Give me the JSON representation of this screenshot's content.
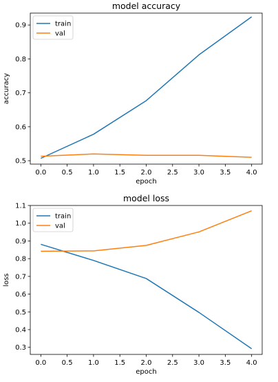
{
  "chart_data": [
    {
      "type": "line",
      "title": "model accuracy",
      "xlabel": "epoch",
      "ylabel": "accuracy",
      "x": [
        0,
        1,
        2,
        3,
        4
      ],
      "xlim": [
        -0.2,
        4.2
      ],
      "ylim": [
        0.49,
        0.935
      ],
      "xticks": [
        "0.0",
        "0.5",
        "1.0",
        "1.5",
        "2.0",
        "2.5",
        "3.0",
        "3.5",
        "4.0"
      ],
      "yticks": [
        "0.5",
        "0.6",
        "0.7",
        "0.8",
        "0.9"
      ],
      "legend": "top-left",
      "grid": false,
      "series": [
        {
          "name": "train",
          "color": "#1f77b4",
          "values": [
            0.507,
            0.578,
            0.677,
            0.812,
            0.924
          ]
        },
        {
          "name": "val",
          "color": "#ff7f0e",
          "values": [
            0.513,
            0.52,
            0.516,
            0.516,
            0.51
          ]
        }
      ]
    },
    {
      "type": "line",
      "title": "model loss",
      "xlabel": "epoch",
      "ylabel": "loss",
      "x": [
        0,
        1,
        2,
        3,
        4
      ],
      "xlim": [
        -0.2,
        4.2
      ],
      "ylim": [
        0.26,
        1.1
      ],
      "xticks": [
        "0.0",
        "0.5",
        "1.0",
        "1.5",
        "2.0",
        "2.5",
        "3.0",
        "3.5",
        "4.0"
      ],
      "yticks": [
        "0.3",
        "0.4",
        "0.5",
        "0.6",
        "0.7",
        "0.8",
        "0.9",
        "1.0",
        "1.1"
      ],
      "legend": "top-left",
      "grid": false,
      "series": [
        {
          "name": "train",
          "color": "#1f77b4",
          "values": [
            0.881,
            0.79,
            0.688,
            0.497,
            0.292
          ]
        },
        {
          "name": "val",
          "color": "#ff7f0e",
          "values": [
            0.842,
            0.844,
            0.875,
            0.951,
            1.07
          ]
        }
      ]
    }
  ]
}
